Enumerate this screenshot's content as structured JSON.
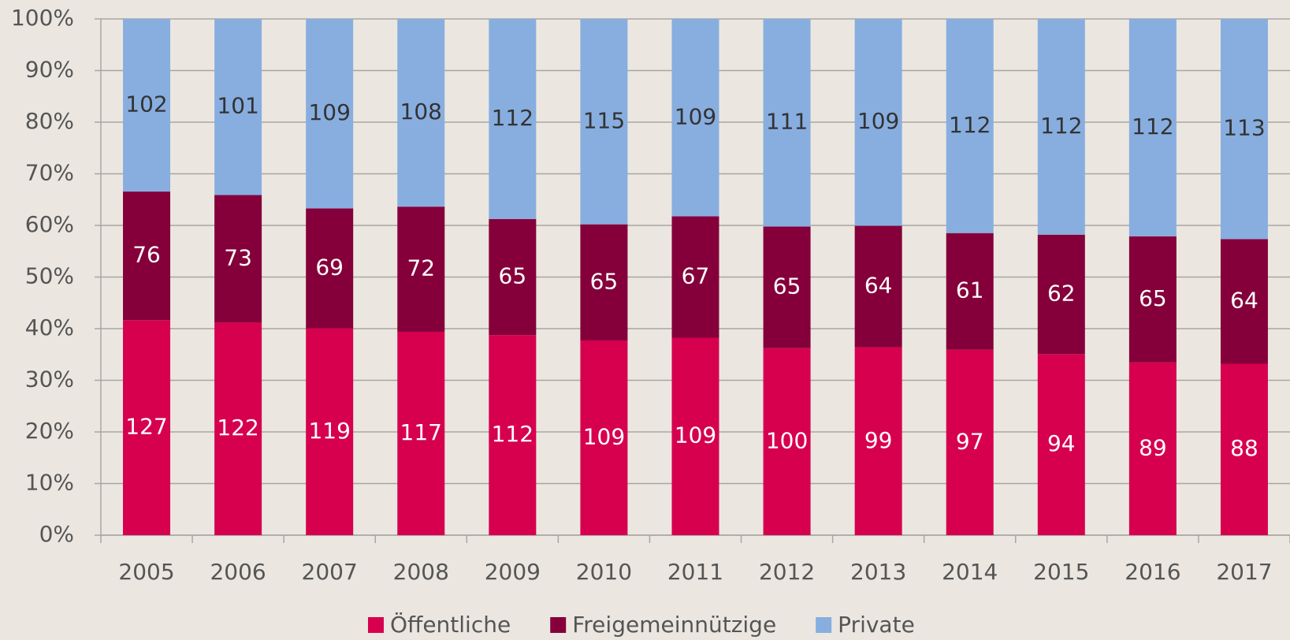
{
  "chart_data": {
    "type": "bar",
    "stack": "percent",
    "categories": [
      "2005",
      "2006",
      "2007",
      "2008",
      "2009",
      "2010",
      "2011",
      "2012",
      "2013",
      "2014",
      "2015",
      "2016",
      "2017"
    ],
    "series": [
      {
        "name": "Öffentliche",
        "color": "#d6004f",
        "values": [
          127,
          122,
          119,
          117,
          112,
          109,
          109,
          100,
          99,
          97,
          94,
          89,
          88
        ]
      },
      {
        "name": "Freigemeinnützige",
        "color": "#85003a",
        "values": [
          76,
          73,
          69,
          72,
          65,
          65,
          67,
          65,
          64,
          61,
          62,
          65,
          64
        ]
      },
      {
        "name": "Private",
        "color": "#88aee0",
        "values": [
          102,
          101,
          109,
          108,
          112,
          115,
          109,
          111,
          109,
          112,
          112,
          112,
          113
        ]
      }
    ],
    "ylim": [
      0,
      100
    ],
    "yticks": [
      {
        "value": 0,
        "label": "0%"
      },
      {
        "value": 10,
        "label": "10%"
      },
      {
        "value": 20,
        "label": "20%"
      },
      {
        "value": 30,
        "label": "30%"
      },
      {
        "value": 40,
        "label": "40%"
      },
      {
        "value": 50,
        "label": "50%"
      },
      {
        "value": 60,
        "label": "60%"
      },
      {
        "value": 70,
        "label": "70%"
      },
      {
        "value": 80,
        "label": "80%"
      },
      {
        "value": 90,
        "label": "90%"
      },
      {
        "value": 100,
        "label": "100%"
      }
    ],
    "grid": true,
    "legend": "bottom"
  }
}
